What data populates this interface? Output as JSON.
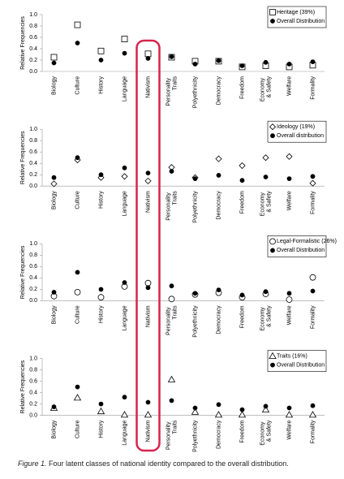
{
  "chart_data": [
    {
      "type": "dot",
      "y_label": "Relative Frequencies",
      "categories": [
        "Biology",
        "Culture",
        "History",
        "Language",
        "Nativism",
        "Personality Traits",
        "Polyethnicity",
        "Democracy",
        "Freedom",
        "Economy & Safety",
        "Welfare",
        "Formality"
      ],
      "ylim": [
        0,
        1
      ],
      "yticks": [
        {
          "value": 0,
          "label": "0.0"
        },
        0.2,
        0.4,
        0.6,
        0.8,
        {
          "value": 1,
          "label": "1.0"
        }
      ],
      "legend": "upper right",
      "series": [
        {
          "name": "Heritage (39%)",
          "color": "#000000",
          "marker": "square",
          "filled": false,
          "values": [
            0.25,
            0.82,
            0.36,
            0.57,
            0.31,
            0.25,
            0.18,
            0.18,
            0.08,
            0.1,
            0.08,
            0.11
          ]
        },
        {
          "name": "Overall Distribution",
          "color": "#000000",
          "marker": "circle",
          "filled": true,
          "values": [
            0.15,
            0.5,
            0.2,
            0.32,
            0.23,
            0.26,
            0.13,
            0.19,
            0.1,
            0.16,
            0.13,
            0.17
          ]
        }
      ]
    },
    {
      "type": "dot",
      "y_label": "Relative Frequencies",
      "categories": [
        "Biology",
        "Culture",
        "History",
        "Language",
        "Nativism",
        "Personality Traits",
        "Polyethnicity",
        "Democracy",
        "Freedom",
        "Economy & Safety",
        "Welfare",
        "Formality"
      ],
      "ylim": [
        0,
        1
      ],
      "yticks": [
        {
          "value": 0,
          "label": "0.0"
        },
        0.2,
        0.4,
        0.6,
        0.8,
        {
          "value": 1,
          "label": "1.0"
        }
      ],
      "legend": "upper right",
      "series": [
        {
          "name": "Ideology (19%)",
          "color": "#000000",
          "marker": "diamond",
          "filled": false,
          "values": [
            0.04,
            0.46,
            0.15,
            0.17,
            0.09,
            0.33,
            0.15,
            0.48,
            0.36,
            0.5,
            0.52,
            0.05
          ]
        },
        {
          "name": "Overall distribution",
          "color": "#000000",
          "marker": "circle",
          "filled": true,
          "values": [
            0.15,
            0.5,
            0.2,
            0.32,
            0.23,
            0.26,
            0.13,
            0.19,
            0.1,
            0.16,
            0.13,
            0.17
          ]
        }
      ]
    },
    {
      "type": "dot",
      "y_label": "Relative Frequencies",
      "categories": [
        "Biology",
        "Culture",
        "History",
        "Language",
        "Nativism",
        "Personality Traits",
        "Polyethnicity",
        "Democracy",
        "Freedom",
        "Economy & Safety",
        "Welfare",
        "Formality"
      ],
      "ylim": [
        0,
        1
      ],
      "yticks": [
        {
          "value": 0,
          "label": "0.0"
        },
        0.2,
        0.4,
        0.6,
        0.8,
        {
          "value": 1,
          "label": "1.0"
        }
      ],
      "legend": "upper right",
      "series": [
        {
          "name": "Legal-Formalistic (26%)",
          "color": "#000000",
          "marker": "circle",
          "filled": false,
          "values": [
            0.08,
            0.15,
            0.06,
            0.25,
            0.31,
            0.03,
            0.11,
            0.14,
            0.06,
            0.12,
            0.02,
            0.41
          ]
        },
        {
          "name": "Overall Distribution",
          "color": "#000000",
          "marker": "circle",
          "filled": true,
          "values": [
            0.15,
            0.5,
            0.2,
            0.32,
            0.23,
            0.26,
            0.13,
            0.19,
            0.1,
            0.16,
            0.13,
            0.17
          ]
        }
      ]
    },
    {
      "type": "dot",
      "y_label": "Relative Frequencies",
      "categories": [
        "Biology",
        "Culture",
        "History",
        "Language",
        "Nativism",
        "Personality Traits",
        "Polyethnicity",
        "Democracy",
        "Freedom",
        "Economy & Safety",
        "Welfare",
        "Formality"
      ],
      "ylim": [
        0,
        1
      ],
      "yticks": [
        {
          "value": 0,
          "label": "0.0"
        },
        0.2,
        0.4,
        0.6,
        0.8,
        {
          "value": 1,
          "label": "1.0"
        }
      ],
      "legend": "upper right",
      "series": [
        {
          "name": "Traits (16%)",
          "color": "#000000",
          "marker": "triangle",
          "filled": false,
          "values": [
            0.13,
            0.31,
            0.07,
            0.01,
            0.01,
            0.63,
            0.06,
            0.01,
            0.01,
            0.1,
            0.01,
            0.01
          ]
        },
        {
          "name": "Overall Distribution",
          "color": "#000000",
          "marker": "circle",
          "filled": true,
          "values": [
            0.15,
            0.5,
            0.2,
            0.32,
            0.23,
            0.26,
            0.13,
            0.19,
            0.1,
            0.16,
            0.13,
            0.17
          ]
        }
      ]
    }
  ],
  "caption": {
    "label": "Figure 1.",
    "text": "Four latent classes of national identity compared to the overall distribution."
  }
}
